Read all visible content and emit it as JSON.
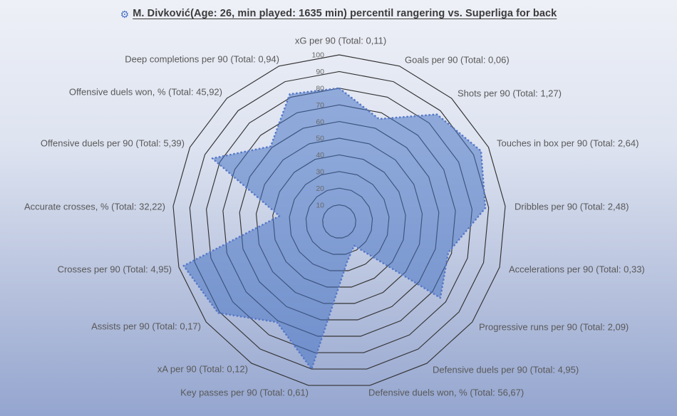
{
  "header": {
    "icon_glyph": "⚙",
    "title": "M. Divković(Age: 26, min played: 1635 min) percentil rangering vs. Superliga for back"
  },
  "chart_data": {
    "type": "radar",
    "title": "M. Divković(Age: 26, min played: 1635 min) percentil rangering vs. Superliga for back",
    "axis_label_format": "{category} (Total: {total})",
    "categories": [
      "xG per 90",
      "Goals per 90",
      "Shots per 90",
      "Touches in box per 90",
      "Dribbles per 90",
      "Accelerations per 90",
      "Progressive runs per 90",
      "Defensive duels per 90",
      "Defensive duels won, %",
      "Key passes per 90",
      "xA per 90",
      "Assists per 90",
      "Crosses per 90",
      "Accurate crosses, %",
      "Offensive duels per 90",
      "Offensive duels won, %",
      "Deep completions per 90"
    ],
    "totals": [
      "0,11",
      "0,06",
      "1,27",
      "2,64",
      "2,48",
      "0,33",
      "2,09",
      "4,95",
      "56,67",
      "0,61",
      "0,12",
      "0,17",
      "4,95",
      "32,22",
      "5,39",
      "45,92",
      "0,94"
    ],
    "values": [
      80,
      66,
      87,
      95,
      88,
      68,
      76,
      17,
      25,
      90,
      71,
      91,
      97,
      36,
      85,
      61,
      82
    ],
    "radial_axis": {
      "min": 0,
      "max": 100,
      "tick_step": 10,
      "tick_labels": [
        "100",
        "90",
        "80",
        "70",
        "60",
        "50",
        "40",
        "30",
        "20",
        "10",
        "-"
      ]
    },
    "grid": true,
    "legend": false,
    "colors": {
      "fill": "rgba(68,114,196,0.52)",
      "border": "#5577c8",
      "gridline": "#333333",
      "tick_label": "#696969",
      "axis_label": "#595959",
      "title": "#3b3b3b",
      "icon": "#4a72c4"
    }
  }
}
